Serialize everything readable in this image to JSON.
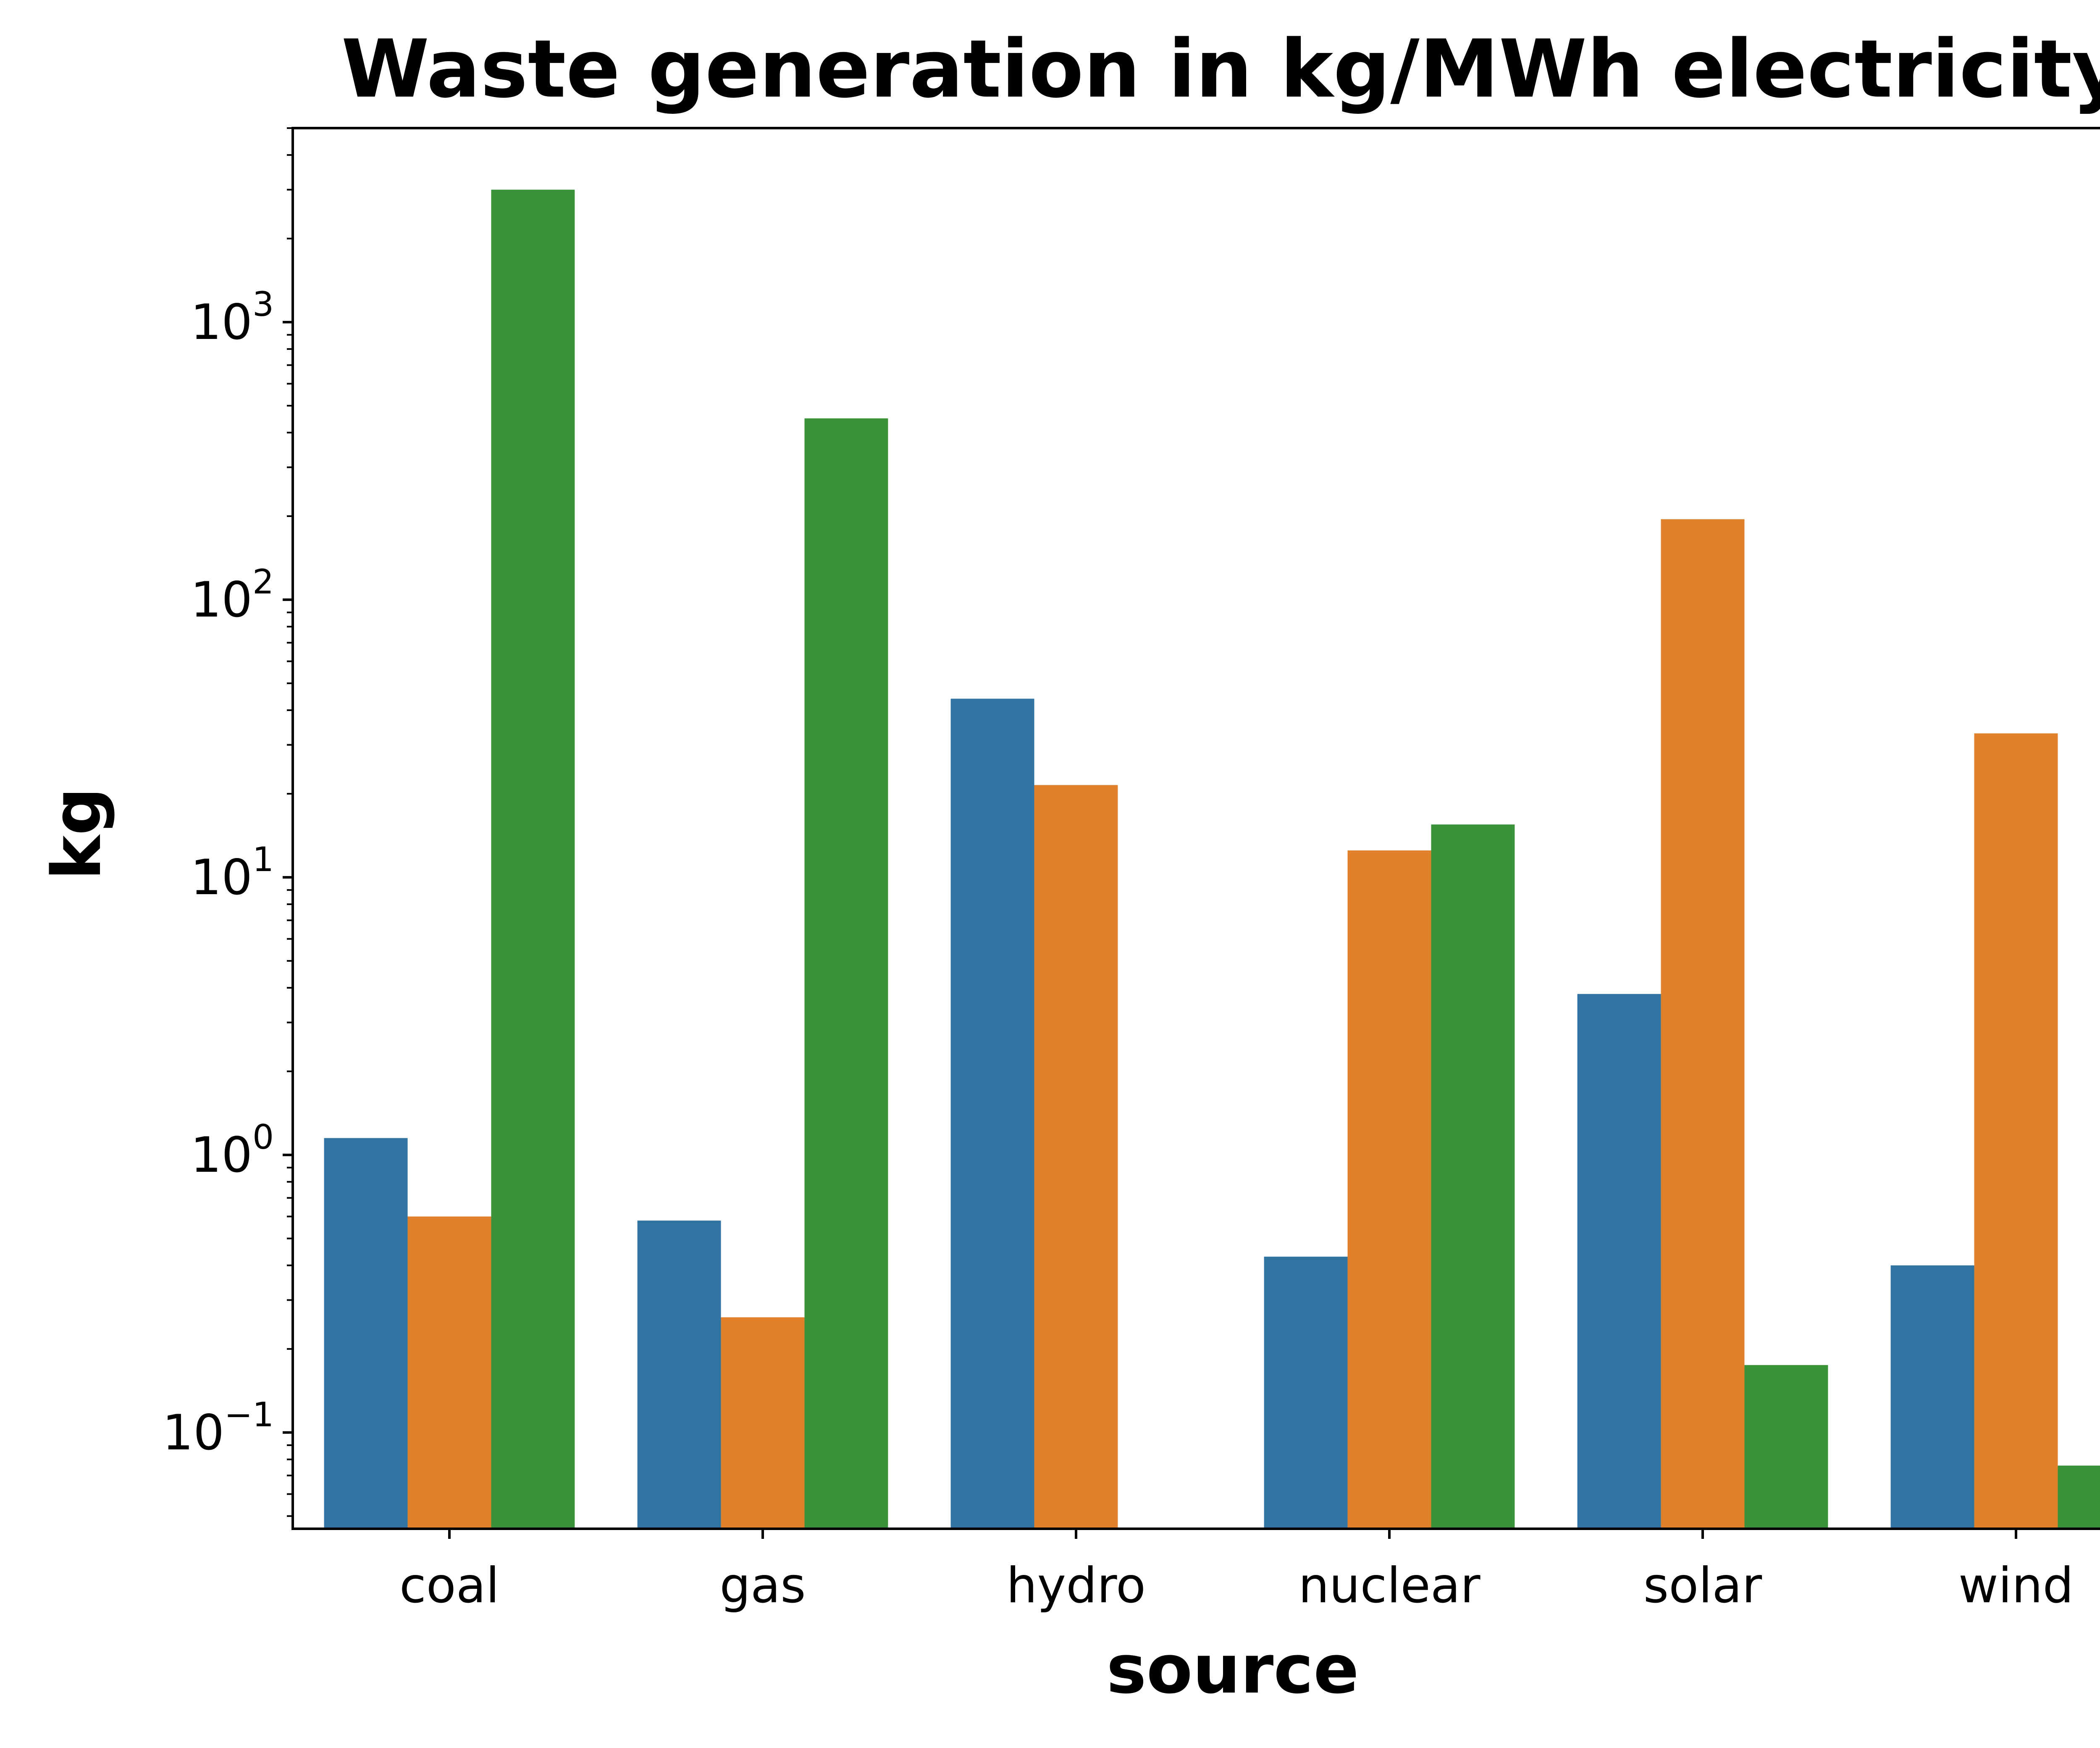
{
  "chart_data": {
    "type": "bar",
    "title": "Waste generation in kg/MWh electricity",
    "xlabel": "source",
    "ylabel": "kg",
    "yscale": "log",
    "ylim": [
      0.045,
      5000
    ],
    "categories": [
      "coal",
      "gas",
      "hydro",
      "nuclear",
      "solar",
      "wind"
    ],
    "series": [
      {
        "color": "#3274a1",
        "values": [
          1.15,
          0.58,
          44,
          0.43,
          3.8,
          0.4
        ]
      },
      {
        "color": "#e1812c",
        "values": [
          0.6,
          0.26,
          21.5,
          12.5,
          195,
          33
        ]
      },
      {
        "color": "#3a923a",
        "values": [
          3000,
          450,
          null,
          15.5,
          0.175,
          0.076
        ]
      }
    ],
    "yticks": [
      {
        "base": "10",
        "exp": "−1",
        "value": 0.1
      },
      {
        "base": "10",
        "exp": "0",
        "value": 1
      },
      {
        "base": "10",
        "exp": "1",
        "value": 10
      },
      {
        "base": "10",
        "exp": "2",
        "value": 100
      },
      {
        "base": "10",
        "exp": "3",
        "value": 1000
      }
    ],
    "grid": false,
    "legend": "none"
  }
}
